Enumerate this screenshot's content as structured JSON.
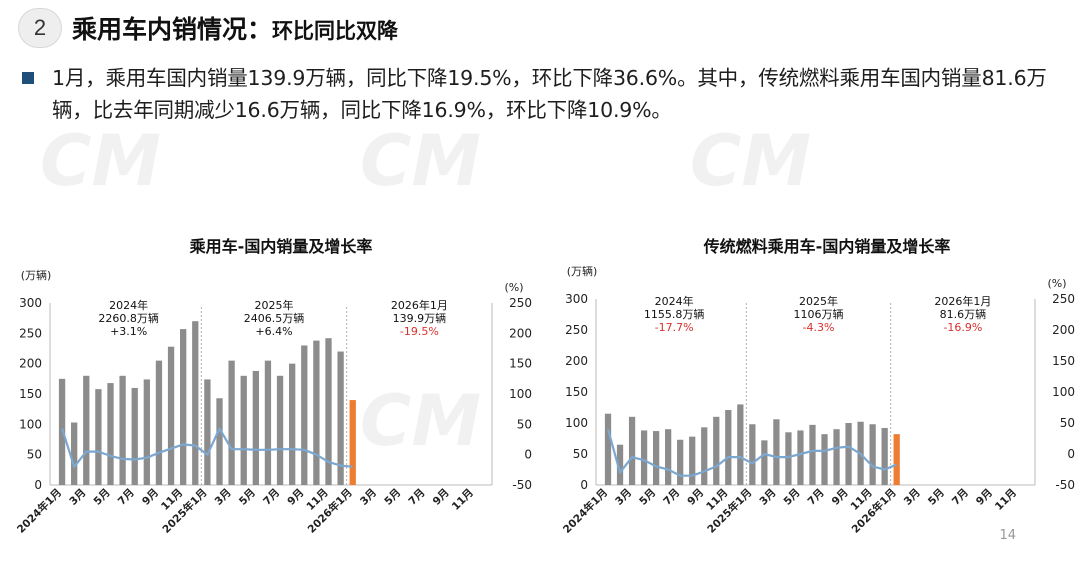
{
  "header": {
    "number": "2",
    "title": "乘用车内销情况：",
    "subtitle": "环比同比双降"
  },
  "bullet": {
    "text": "1月，乘用车国内销量139.9万辆，同比下降19.5%，环比下降36.6%。其中，传统燃料乘用车国内销量81.6万辆，比去年同期减少16.6万辆，同比下降16.9%，环比下降10.9%。"
  },
  "page_number": "14",
  "colors": {
    "bar": "#8c8c8c",
    "highlight_bar": "#ed7d31",
    "line": "#7ba7d0",
    "negative_text": "#d9302c",
    "badge_square": "#1f4e79"
  },
  "chart_data": [
    {
      "type": "bar",
      "title": "乘用车-国内销量及增长率",
      "left_unit": "(万辆)",
      "right_unit": "(%)",
      "ylim_left": [
        0,
        300
      ],
      "ylim_right": [
        -50,
        250
      ],
      "yticks_left": [
        "300",
        "250",
        "200",
        "150",
        "100",
        "50",
        "0"
      ],
      "yticks_right": [
        "250",
        "200",
        "150",
        "100",
        "50",
        "0",
        "-50"
      ],
      "x_tick_labels": [
        "2024年1月",
        "3月",
        "5月",
        "7月",
        "9月",
        "11月",
        "2025年1月",
        "3月",
        "5月",
        "7月",
        "9月",
        "11月",
        "2026年1月",
        "3月",
        "5月",
        "7月",
        "9月",
        "11月"
      ],
      "categories_count": 36,
      "values": [
        175,
        103,
        180,
        158,
        168,
        180,
        160,
        174,
        205,
        228,
        257,
        270,
        174,
        143,
        205,
        180,
        188,
        205,
        180,
        200,
        230,
        238,
        242,
        220,
        140
      ],
      "highlight_index": 24,
      "growth_rate": [
        43,
        -20,
        5,
        5,
        -2,
        -7,
        -8,
        -5,
        3,
        10,
        17,
        15,
        0,
        43,
        9,
        9,
        8,
        8,
        9,
        9,
        8,
        0,
        -12,
        -18,
        -20
      ],
      "annotations": [
        {
          "lines": [
            "2024年",
            "2260.8万辆",
            "+3.1%"
          ],
          "negative": false
        },
        {
          "lines": [
            "2025年",
            "2406.5万辆",
            "+6.4%"
          ],
          "negative": false
        },
        {
          "lines": [
            "2026年1月",
            "139.9万辆",
            "-19.5%"
          ],
          "negative": true
        }
      ]
    },
    {
      "type": "bar",
      "title": "传统燃料乘用车-国内销量及增长率",
      "left_unit": "(万辆)",
      "right_unit": "(%)",
      "ylim_left": [
        0,
        300
      ],
      "ylim_right": [
        -50,
        250
      ],
      "yticks_left": [
        "300",
        "250",
        "200",
        "150",
        "100",
        "50",
        "0"
      ],
      "yticks_right": [
        "250",
        "200",
        "150",
        "100",
        "50",
        "0",
        "-50"
      ],
      "x_tick_labels": [
        "2024年1月",
        "3月",
        "5月",
        "7月",
        "9月",
        "11月",
        "2025年1月",
        "3月",
        "5月",
        "7月",
        "9月",
        "11月",
        "2026年1月",
        "3月",
        "5月",
        "7月",
        "9月",
        "11月"
      ],
      "categories_count": 36,
      "values": [
        115,
        65,
        110,
        88,
        87,
        90,
        73,
        78,
        93,
        110,
        121,
        130,
        98,
        72,
        106,
        85,
        88,
        97,
        82,
        90,
        100,
        102,
        98,
        92,
        82
      ],
      "highlight_index": 24,
      "growth_rate": [
        40,
        -30,
        -5,
        -10,
        -20,
        -25,
        -35,
        -35,
        -28,
        -20,
        -5,
        -5,
        -15,
        0,
        -5,
        -5,
        0,
        5,
        5,
        10,
        12,
        0,
        -20,
        -25,
        -17
      ],
      "annotations": [
        {
          "lines": [
            "2024年",
            "1155.8万辆",
            "-17.7%"
          ],
          "negative": true
        },
        {
          "lines": [
            "2025年",
            "1106万辆",
            "-4.3%"
          ],
          "negative": true
        },
        {
          "lines": [
            "2026年1月",
            "81.6万辆",
            "-16.9%"
          ],
          "negative": true
        }
      ]
    }
  ]
}
